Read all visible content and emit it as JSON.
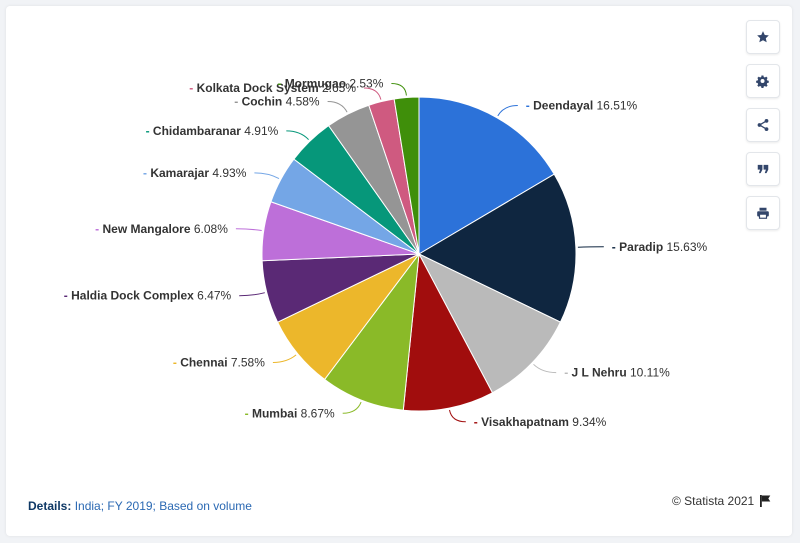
{
  "chart_data": {
    "type": "pie",
    "title": "",
    "unit": "%",
    "categories": [
      "Deendayal",
      "Paradip",
      "J L Nehru",
      "Visakhapatnam",
      "Mumbai",
      "Chennai",
      "Haldia Dock Complex",
      "New Mangalore",
      "Kamarajar",
      "Chidambaranar",
      "Cochin",
      "Kolkata Dock System",
      "Mormugao"
    ],
    "values": [
      16.51,
      15.63,
      10.11,
      9.34,
      8.67,
      7.58,
      6.47,
      6.08,
      4.93,
      4.91,
      4.58,
      2.65,
      2.53
    ],
    "value_labels": [
      "16.51%",
      "15.63%",
      "10.11%",
      "9.34%",
      "8.67%",
      "7.58%",
      "6.47%",
      "6.08%",
      "4.93%",
      "4.91%",
      "4.58%",
      "2.65%",
      "2.53%"
    ],
    "colors": [
      "#2c72d9",
      "#0f2640",
      "#bababa",
      "#a10d0d",
      "#8aba28",
      "#ecb72b",
      "#5a2975",
      "#bd6fd9",
      "#74a6e6",
      "#06977a",
      "#959595",
      "#cf5a80",
      "#3f8f0a"
    ],
    "legend": "none",
    "start_angle_deg": 0,
    "direction": "clockwise"
  },
  "details": {
    "label": "Details:",
    "text": "India; FY 2019; Based on volume"
  },
  "credit": {
    "text": "© Statista 2021"
  },
  "toolbar": {
    "icons": [
      "star-icon",
      "gear-icon",
      "share-icon",
      "quote-icon",
      "print-icon"
    ]
  }
}
